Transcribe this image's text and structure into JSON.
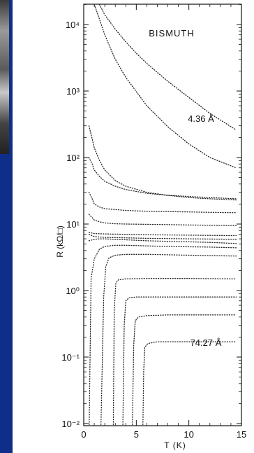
{
  "background": {
    "slide_color": "#0f2e8a",
    "panel_color": "#ffffff"
  },
  "chart_data": {
    "type": "line",
    "title": "BISMUTH",
    "xlabel": "T (K)",
    "ylabel": "R (kΩ/□)",
    "xlim": [
      0,
      15
    ],
    "ylim": [
      0.005,
      20000
    ],
    "yscale": "log",
    "xticks": [
      "0",
      "5",
      "10",
      "15"
    ],
    "yticks": [
      "10⁻²",
      "10⁻¹",
      "10⁰",
      "10¹",
      "10²",
      "10³",
      "10⁴"
    ],
    "annotations": [
      "4.36 Å",
      "74.27 Å"
    ],
    "grid": false,
    "series": [
      {
        "x": [
          1.5,
          2,
          3,
          4,
          5,
          6,
          8,
          10,
          12,
          14.5
        ],
        "values": [
          20000,
          14000,
          8500,
          5500,
          3700,
          2600,
          1400,
          800,
          460,
          260
        ]
      },
      {
        "x": [
          1.0,
          1.5,
          2,
          3,
          4,
          6,
          8,
          10,
          12,
          14.5
        ],
        "values": [
          20000,
          12000,
          7000,
          3000,
          1600,
          600,
          290,
          160,
          100,
          70
        ]
      },
      {
        "x": [
          0.5,
          0.8,
          1,
          1.5,
          2,
          3,
          4,
          6,
          8,
          10,
          12,
          14.5
        ],
        "values": [
          300,
          190,
          140,
          90,
          65,
          45,
          37,
          30,
          27,
          25,
          24,
          23
        ]
      },
      {
        "x": [
          0.5,
          0.8,
          1,
          1.5,
          2,
          3,
          4,
          6,
          8,
          10,
          12,
          14.5
        ],
        "values": [
          100,
          80,
          65,
          52,
          44,
          37,
          33,
          29,
          27,
          26,
          25,
          24
        ]
      },
      {
        "x": [
          0.5,
          0.8,
          1,
          1.5,
          2,
          3,
          4,
          6,
          8,
          10,
          12,
          14.5
        ],
        "values": [
          30,
          24,
          20,
          18,
          17,
          16.5,
          16,
          15.6,
          15.4,
          15.2,
          15.0,
          14.8
        ]
      },
      {
        "x": [
          0.5,
          0.8,
          1,
          1.5,
          2,
          3,
          4,
          6,
          8,
          10,
          12,
          14.5
        ],
        "values": [
          14,
          12.5,
          11.5,
          10.8,
          10.4,
          10.1,
          10,
          9.9,
          9.8,
          9.7,
          9.6,
          9.5
        ]
      },
      {
        "x": [
          0.5,
          1,
          2,
          4,
          6,
          8,
          10,
          12,
          14.5
        ],
        "values": [
          7.5,
          7.2,
          7.1,
          7.0,
          6.9,
          6.85,
          6.8,
          6.75,
          6.7
        ]
      },
      {
        "x": [
          0.5,
          1,
          2,
          4,
          6,
          8,
          10,
          12,
          14.5
        ],
        "values": [
          7.0,
          6.5,
          6.3,
          6.2,
          6.1,
          6.05,
          6.0,
          5.95,
          5.9
        ]
      },
      {
        "x": [
          0.5,
          1,
          1.5,
          2,
          3,
          4,
          6,
          8,
          10,
          12,
          14.5
        ],
        "values": [
          5.6,
          5.9,
          6.0,
          6.0,
          5.9,
          5.8,
          5.6,
          5.5,
          5.4,
          5.3,
          5.1
        ]
      },
      {
        "x": [
          0.5,
          0.7,
          1.0,
          1.5,
          2,
          3,
          4,
          6,
          8,
          10,
          12,
          14.5
        ],
        "values": [
          0.005,
          1.5,
          3.0,
          4.2,
          4.6,
          4.8,
          4.8,
          4.7,
          4.6,
          4.55,
          4.5,
          4.4
        ]
      },
      {
        "x": [
          1.6,
          1.9,
          2.1,
          2.4,
          3,
          4,
          6,
          8,
          10,
          12,
          14.5
        ],
        "values": [
          0.005,
          0.8,
          2.3,
          3.1,
          3.4,
          3.5,
          3.5,
          3.45,
          3.4,
          3.35,
          3.3
        ]
      },
      {
        "x": [
          2.8,
          2.9,
          3.05,
          3.3,
          4,
          6,
          8,
          10,
          12,
          14.5
        ],
        "values": [
          0.005,
          0.5,
          1.3,
          1.45,
          1.5,
          1.52,
          1.52,
          1.52,
          1.51,
          1.5
        ]
      },
      {
        "x": [
          3.7,
          3.85,
          4.0,
          4.3,
          5,
          7,
          10,
          14.5
        ],
        "values": [
          0.005,
          0.3,
          0.7,
          0.78,
          0.8,
          0.8,
          0.8,
          0.8
        ]
      },
      {
        "x": [
          4.6,
          4.75,
          4.9,
          5.2,
          6,
          8,
          10,
          14.5
        ],
        "values": [
          0.005,
          0.15,
          0.35,
          0.4,
          0.42,
          0.43,
          0.43,
          0.43
        ]
      },
      {
        "x": [
          5.6,
          5.7,
          5.8,
          6.1,
          7,
          9,
          12,
          14.5
        ],
        "values": [
          0.005,
          0.06,
          0.14,
          0.16,
          0.17,
          0.17,
          0.17,
          0.17
        ]
      }
    ]
  }
}
